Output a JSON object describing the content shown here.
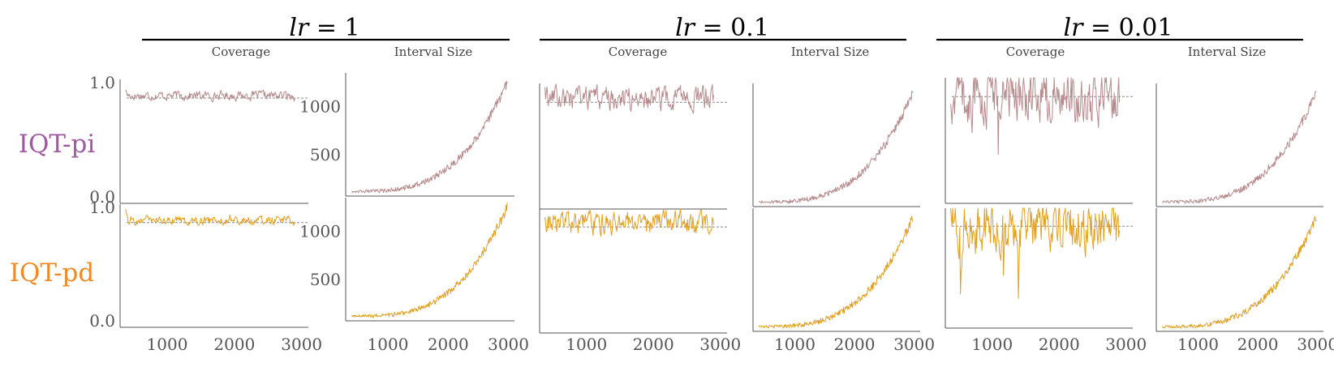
{
  "figure": {
    "column_header_coverage": "Coverage",
    "column_header_interval": "Interval Size",
    "methods": [
      {
        "key": "pi",
        "label": "IQT-pi",
        "color": "#a05aa0",
        "line_color": "#b58a8c"
      },
      {
        "key": "pd",
        "label": "IQT-pd",
        "color": "#f08a24",
        "line_color": "#e0a020"
      }
    ],
    "lr_groups": [
      {
        "prefix": "lr",
        "equals": " = ",
        "value": "1"
      },
      {
        "prefix": "lr",
        "equals": " = ",
        "value": "0.1"
      },
      {
        "prefix": "lr",
        "equals": " = ",
        "value": "0.01"
      }
    ]
  },
  "chart_data": [
    {
      "type": "line",
      "group": "lr = 1",
      "method": "IQT-pi",
      "panel": "Coverage",
      "x_range": [
        300,
        3100
      ],
      "ylim": [
        0.0,
        1.0
      ],
      "y_ticks": [
        "1.0",
        "0.0"
      ],
      "target_level": 0.85,
      "mean": 0.87,
      "amplitude": 0.06,
      "x_ticks": []
    },
    {
      "type": "line",
      "group": "lr = 1",
      "method": "IQT-pi",
      "panel": "Interval Size",
      "x_range": [
        300,
        3100
      ],
      "y_ticks": [
        "1000",
        "500"
      ],
      "start": 150,
      "end": 1300,
      "x_ticks": []
    },
    {
      "type": "line",
      "group": "lr = 1",
      "method": "IQT-pd",
      "panel": "Coverage",
      "x_range": [
        300,
        3100
      ],
      "ylim": [
        0.0,
        1.0
      ],
      "y_ticks": [
        "1.0",
        "0.0"
      ],
      "target_level": 0.85,
      "mean": 0.87,
      "amplitude": 0.06,
      "x_ticks": [
        "1000",
        "2000",
        "3000"
      ]
    },
    {
      "type": "line",
      "group": "lr = 1",
      "method": "IQT-pd",
      "panel": "Interval Size",
      "x_range": [
        300,
        3100
      ],
      "y_ticks": [
        "1000",
        "500"
      ],
      "start": 150,
      "end": 1300,
      "x_ticks": [
        "1000",
        "2000",
        "3000"
      ]
    },
    {
      "type": "line",
      "group": "lr = 0.1",
      "method": "IQT-pi",
      "panel": "Coverage",
      "x_range": [
        300,
        3100
      ],
      "target_level": 0.85,
      "mean": 0.88,
      "amplitude": 0.15,
      "x_ticks": []
    },
    {
      "type": "line",
      "group": "lr = 0.1",
      "method": "IQT-pi",
      "panel": "Interval Size",
      "x_range": [
        300,
        3100
      ],
      "start": 150,
      "end": 1300,
      "x_ticks": []
    },
    {
      "type": "line",
      "group": "lr = 0.1",
      "method": "IQT-pd",
      "panel": "Coverage",
      "x_range": [
        300,
        3100
      ],
      "target_level": 0.85,
      "mean": 0.88,
      "amplitude": 0.15,
      "x_ticks": [
        "1000",
        "2000",
        "3000"
      ]
    },
    {
      "type": "line",
      "group": "lr = 0.1",
      "method": "IQT-pd",
      "panel": "Interval Size",
      "x_range": [
        300,
        3100
      ],
      "start": 150,
      "end": 1300,
      "x_ticks": [
        "1000",
        "2000",
        "3000"
      ]
    },
    {
      "type": "line",
      "group": "lr = 0.01",
      "method": "IQT-pi",
      "panel": "Coverage",
      "x_range": [
        300,
        3100
      ],
      "target_level": 0.85,
      "mean": 0.85,
      "amplitude": 0.35,
      "x_ticks": []
    },
    {
      "type": "line",
      "group": "lr = 0.01",
      "method": "IQT-pi",
      "panel": "Interval Size",
      "x_range": [
        300,
        3100
      ],
      "start": 150,
      "end": 1300,
      "x_ticks": []
    },
    {
      "type": "line",
      "group": "lr = 0.01",
      "method": "IQT-pd",
      "panel": "Coverage",
      "x_range": [
        300,
        3100
      ],
      "target_level": 0.85,
      "mean": 0.85,
      "amplitude": 0.35,
      "x_ticks": [
        "1000",
        "2000",
        "3000"
      ]
    },
    {
      "type": "line",
      "group": "lr = 0.01",
      "method": "IQT-pd",
      "panel": "Interval Size",
      "x_range": [
        300,
        3100
      ],
      "start": 150,
      "end": 1300,
      "x_ticks": [
        "1000",
        "2000",
        "3000"
      ]
    }
  ]
}
